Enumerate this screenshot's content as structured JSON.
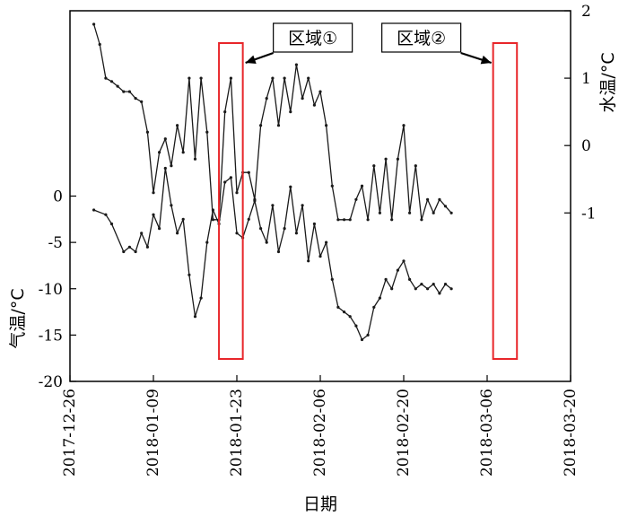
{
  "chart_data": {
    "type": "line",
    "xlabel": "日期",
    "ylabel_left": "气温/°C",
    "ylabel_right": "水温/°C",
    "x_ticks": [
      "2017-12-26",
      "2018-01-09",
      "2018-01-23",
      "2018-02-06",
      "2018-02-20",
      "2018-03-06",
      "2018-03-20"
    ],
    "xlim": [
      "2017-12-26",
      "2018-03-20"
    ],
    "y_left_ticks": [
      0,
      -5,
      -10,
      -15,
      -20
    ],
    "y_left_lim": [
      -20,
      20
    ],
    "y_right_ticks": [
      2,
      1,
      0,
      -1
    ],
    "y_right_lim": [
      -3.5,
      2
    ],
    "series": [
      {
        "axis": "right",
        "values": [
          [
            "2017-12-30",
            1.8
          ],
          [
            "2017-12-31",
            1.5
          ],
          [
            "2018-01-01",
            1.0
          ],
          [
            "2018-01-02",
            0.95
          ],
          [
            "2018-01-03",
            0.88
          ],
          [
            "2018-01-04",
            0.8
          ],
          [
            "2018-01-05",
            0.8
          ],
          [
            "2018-01-06",
            0.7
          ],
          [
            "2018-01-07",
            0.65
          ],
          [
            "2018-01-08",
            0.2
          ],
          [
            "2018-01-09",
            -0.7
          ],
          [
            "2018-01-10",
            -0.1
          ],
          [
            "2018-01-11",
            0.1
          ],
          [
            "2018-01-12",
            -0.3
          ],
          [
            "2018-01-13",
            0.3
          ],
          [
            "2018-01-14",
            -0.1
          ],
          [
            "2018-01-15",
            1.0
          ],
          [
            "2018-01-16",
            -0.2
          ],
          [
            "2018-01-17",
            1.0
          ],
          [
            "2018-01-18",
            0.2
          ],
          [
            "2018-01-19",
            -1.1
          ],
          [
            "2018-01-20",
            -1.1
          ],
          [
            "2018-01-21",
            0.5
          ],
          [
            "2018-01-22",
            1.0
          ],
          [
            "2018-01-23",
            -0.7
          ],
          [
            "2018-01-24",
            -0.4
          ],
          [
            "2018-01-25",
            -0.4
          ],
          [
            "2018-01-26",
            -0.8
          ],
          [
            "2018-01-27",
            0.3
          ],
          [
            "2018-01-28",
            0.7
          ],
          [
            "2018-01-29",
            1.0
          ],
          [
            "2018-01-30",
            0.3
          ],
          [
            "2018-01-31",
            1.0
          ],
          [
            "2018-02-01",
            0.5
          ],
          [
            "2018-02-02",
            1.2
          ],
          [
            "2018-02-03",
            0.7
          ],
          [
            "2018-02-04",
            1.0
          ],
          [
            "2018-02-05",
            0.6
          ],
          [
            "2018-02-06",
            0.8
          ],
          [
            "2018-02-07",
            0.3
          ],
          [
            "2018-02-08",
            -0.6
          ],
          [
            "2018-02-09",
            -1.1
          ],
          [
            "2018-02-10",
            -1.1
          ],
          [
            "2018-02-11",
            -1.1
          ],
          [
            "2018-02-12",
            -0.8
          ],
          [
            "2018-02-13",
            -0.6
          ],
          [
            "2018-02-14",
            -1.1
          ],
          [
            "2018-02-15",
            -0.3
          ],
          [
            "2018-02-16",
            -1.0
          ],
          [
            "2018-02-17",
            -0.2
          ],
          [
            "2018-02-18",
            -1.1
          ],
          [
            "2018-02-19",
            -0.2
          ],
          [
            "2018-02-20",
            0.3
          ],
          [
            "2018-02-21",
            -1.0
          ],
          [
            "2018-02-22",
            -0.3
          ],
          [
            "2018-02-23",
            -1.1
          ],
          [
            "2018-02-24",
            -0.8
          ],
          [
            "2018-02-25",
            -1.0
          ],
          [
            "2018-02-26",
            -0.8
          ],
          [
            "2018-02-27",
            -0.9
          ],
          [
            "2018-02-28",
            -1.0
          ]
        ]
      },
      {
        "axis": "left",
        "values": [
          [
            "2017-12-30",
            -1.5
          ],
          [
            "2018-01-01",
            -2.0
          ],
          [
            "2018-01-02",
            -3.0
          ],
          [
            "2018-01-04",
            -6.0
          ],
          [
            "2018-01-05",
            -5.5
          ],
          [
            "2018-01-06",
            -6.0
          ],
          [
            "2018-01-07",
            -4.0
          ],
          [
            "2018-01-08",
            -5.5
          ],
          [
            "2018-01-09",
            -2.0
          ],
          [
            "2018-01-10",
            -3.5
          ],
          [
            "2018-01-11",
            3.0
          ],
          [
            "2018-01-12",
            -1.0
          ],
          [
            "2018-01-13",
            -4.0
          ],
          [
            "2018-01-14",
            -2.5
          ],
          [
            "2018-01-15",
            -8.5
          ],
          [
            "2018-01-16",
            -13.0
          ],
          [
            "2018-01-17",
            -11.0
          ],
          [
            "2018-01-18",
            -5.0
          ],
          [
            "2018-01-19",
            -1.5
          ],
          [
            "2018-01-20",
            -3.0
          ],
          [
            "2018-01-21",
            1.5
          ],
          [
            "2018-01-22",
            2.0
          ],
          [
            "2018-01-23",
            -4.0
          ],
          [
            "2018-01-24",
            -4.5
          ],
          [
            "2018-01-25",
            -2.5
          ],
          [
            "2018-01-26",
            -0.5
          ],
          [
            "2018-01-27",
            -3.5
          ],
          [
            "2018-01-28",
            -5.0
          ],
          [
            "2018-01-29",
            -1.0
          ],
          [
            "2018-01-30",
            -6.0
          ],
          [
            "2018-01-31",
            -3.5
          ],
          [
            "2018-02-01",
            1.0
          ],
          [
            "2018-02-02",
            -4.0
          ],
          [
            "2018-02-03",
            -1.0
          ],
          [
            "2018-02-04",
            -7.0
          ],
          [
            "2018-02-05",
            -3.0
          ],
          [
            "2018-02-06",
            -6.5
          ],
          [
            "2018-02-07",
            -5.0
          ],
          [
            "2018-02-08",
            -9.0
          ],
          [
            "2018-02-09",
            -12.0
          ],
          [
            "2018-02-10",
            -12.5
          ],
          [
            "2018-02-11",
            -13.0
          ],
          [
            "2018-02-12",
            -14.0
          ],
          [
            "2018-02-13",
            -15.5
          ],
          [
            "2018-02-14",
            -15.0
          ],
          [
            "2018-02-15",
            -12.0
          ],
          [
            "2018-02-16",
            -11.0
          ],
          [
            "2018-02-17",
            -9.0
          ],
          [
            "2018-02-18",
            -10.0
          ],
          [
            "2018-02-19",
            -8.0
          ],
          [
            "2018-02-20",
            -7.0
          ],
          [
            "2018-02-21",
            -9.0
          ],
          [
            "2018-02-22",
            -10.0
          ],
          [
            "2018-02-23",
            -9.5
          ],
          [
            "2018-02-24",
            -10.0
          ],
          [
            "2018-02-25",
            -9.5
          ],
          [
            "2018-02-26",
            -10.5
          ],
          [
            "2018-02-27",
            -9.5
          ],
          [
            "2018-02-28",
            -10.0
          ]
        ]
      }
    ],
    "annotations": [
      {
        "label": "区域①",
        "start": "2018-01-20",
        "end": "2018-01-24",
        "color": "#e8262a"
      },
      {
        "label": "区域②",
        "start": "2018-03-07",
        "end": "2018-03-11",
        "color": "#e8262a"
      }
    ]
  }
}
